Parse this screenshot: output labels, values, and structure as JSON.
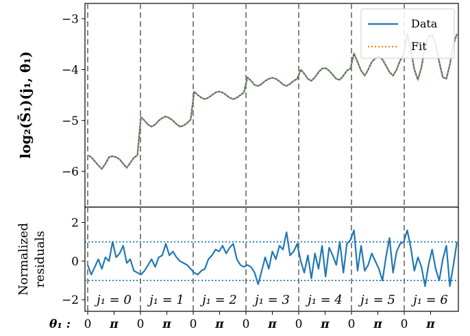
{
  "chart_data": [
    {
      "type": "line",
      "ylabel": "log₂(S̄₁)(j₁, θ₁)",
      "ylim": [
        -6.7,
        -2.7
      ],
      "yticks": [
        -3,
        -4,
        -5,
        -6
      ],
      "ytick_labels": [
        "−3",
        "−4",
        "−5",
        "−6"
      ],
      "legend_position": "top-right",
      "segment_boundaries": [
        0,
        1,
        2,
        3,
        4,
        5,
        6
      ],
      "x_max": 7,
      "series": [
        {
          "name": "Data",
          "color": "#1f77b4",
          "style": "solid",
          "values": [
            -5.68,
            -5.72,
            -5.8,
            -5.88,
            -5.95,
            -5.85,
            -5.72,
            -5.7,
            -5.72,
            -5.76,
            -5.85,
            -5.93,
            -5.83,
            -5.73,
            -5.68,
            -4.93,
            -5.0,
            -5.08,
            -5.12,
            -5.08,
            -5.0,
            -4.95,
            -4.92,
            -4.95,
            -5.0,
            -5.07,
            -5.12,
            -5.1,
            -5.05,
            -4.98,
            -4.43,
            -4.5,
            -4.55,
            -4.58,
            -4.55,
            -4.5,
            -4.45,
            -4.43,
            -4.45,
            -4.5,
            -4.55,
            -4.58,
            -4.55,
            -4.5,
            -4.45,
            -4.15,
            -4.22,
            -4.3,
            -4.32,
            -4.28,
            -4.22,
            -4.18,
            -4.16,
            -4.18,
            -4.23,
            -4.29,
            -4.32,
            -4.28,
            -4.22,
            -4.18,
            -4.0,
            -4.08,
            -4.18,
            -4.22,
            -4.15,
            -4.05,
            -3.98,
            -3.97,
            -4.02,
            -4.1,
            -4.18,
            -4.2,
            -4.12,
            -4.02,
            -3.98,
            -3.68,
            -3.85,
            -4.02,
            -4.12,
            -4.0,
            -3.85,
            -3.78,
            -3.75,
            -3.8,
            -3.92,
            -4.05,
            -4.12,
            -4.0,
            -3.82,
            -3.7,
            -3.3,
            -3.6,
            -4.0,
            -4.2,
            -3.95,
            -3.55,
            -3.35,
            -3.32,
            -3.5,
            -3.85,
            -4.15,
            -4.18,
            -3.9,
            -3.5,
            -3.3
          ]
        },
        {
          "name": "Fit",
          "color": "#ff7f0e",
          "style": "dotted",
          "values": [
            -5.68,
            -5.72,
            -5.8,
            -5.88,
            -5.95,
            -5.85,
            -5.72,
            -5.7,
            -5.72,
            -5.76,
            -5.85,
            -5.93,
            -5.83,
            -5.73,
            -5.68,
            -4.93,
            -5.0,
            -5.08,
            -5.12,
            -5.08,
            -5.0,
            -4.95,
            -4.92,
            -4.95,
            -5.0,
            -5.07,
            -5.12,
            -5.1,
            -5.05,
            -4.98,
            -4.43,
            -4.5,
            -4.55,
            -4.58,
            -4.55,
            -4.5,
            -4.45,
            -4.43,
            -4.45,
            -4.5,
            -4.55,
            -4.58,
            -4.55,
            -4.5,
            -4.45,
            -4.15,
            -4.22,
            -4.3,
            -4.32,
            -4.28,
            -4.22,
            -4.18,
            -4.16,
            -4.18,
            -4.23,
            -4.29,
            -4.32,
            -4.28,
            -4.22,
            -4.18,
            -4.0,
            -4.08,
            -4.18,
            -4.22,
            -4.15,
            -4.05,
            -3.98,
            -3.97,
            -4.02,
            -4.1,
            -4.18,
            -4.2,
            -4.12,
            -4.02,
            -3.98,
            -3.68,
            -3.85,
            -4.02,
            -4.12,
            -4.0,
            -3.85,
            -3.78,
            -3.75,
            -3.8,
            -3.92,
            -4.05,
            -4.12,
            -4.0,
            -3.82,
            -3.7,
            -3.3,
            -3.6,
            -4.0,
            -4.2,
            -3.95,
            -3.55,
            -3.35,
            -3.32,
            -3.5,
            -3.85,
            -4.15,
            -4.18,
            -3.9,
            -3.5,
            -3.3
          ]
        }
      ]
    },
    {
      "type": "line",
      "ylabel_lines": [
        "Normalized",
        "residuals"
      ],
      "ylim": [
        -2.6,
        2.8
      ],
      "yticks": [
        2,
        0,
        -2
      ],
      "ytick_labels": [
        "2",
        "0",
        "−2"
      ],
      "reference_lines": [
        1,
        -1
      ],
      "segment_boundaries": [
        0,
        1,
        2,
        3,
        4,
        5,
        6
      ],
      "x_max": 7,
      "series": [
        {
          "color": "#1f77b4",
          "values": [
            -0.2,
            -0.7,
            -0.3,
            0.1,
            -0.4,
            0.2,
            0.0,
            1.0,
            0.2,
            0.4,
            0.8,
            -0.1,
            0.1,
            -0.5,
            -0.6,
            -0.7,
            -0.5,
            -0.2,
            0.1,
            -0.3,
            0.2,
            0.3,
            0.9,
            0.3,
            0.5,
            0.2,
            0.0,
            -0.1,
            -0.2,
            -0.4,
            -0.6,
            -0.7,
            -0.5,
            -0.4,
            0.1,
            0.3,
            0.6,
            0.5,
            0.8,
            0.4,
            0.7,
            0.9,
            0.1,
            -0.2,
            -0.3,
            -0.2,
            -0.3,
            -0.6,
            -1.2,
            -0.5,
            0.2,
            -0.4,
            0.5,
            0.1,
            0.8,
            0.6,
            1.5,
            0.3,
            0.5,
            0.9,
            0.0,
            -0.6,
            0.3,
            -0.9,
            0.4,
            -0.4,
            0.8,
            -0.8,
            0.7,
            0.3,
            -0.2,
            1.0,
            -0.6,
            0.9,
            1.1,
            1.6,
            -0.5,
            0.8,
            -0.5,
            -0.2,
            0.4,
            0.0,
            -0.4,
            -1.0,
            0.2,
            1.2,
            -0.6,
            0.5,
            0.9,
            1.0,
            1.6,
            0.7,
            -0.5,
            0.2,
            -0.3,
            -1.3,
            -0.2,
            0.6,
            -0.4,
            -1.0,
            0.1,
            0.8,
            -1.3,
            -0.2,
            1.0
          ]
        }
      ]
    }
  ],
  "segment_labels": [
    "j₁ = 0",
    "j₁ = 1",
    "j₁ = 2",
    "j₁ = 3",
    "j₁ = 4",
    "j₁ = 5",
    "j₁ = 6"
  ],
  "x_axis_prefix": "θ₁ :",
  "x_ticks": [
    "0",
    "π",
    "0",
    "π",
    "0",
    "π",
    "0",
    "π",
    "0",
    "π",
    "0",
    "π",
    "0",
    "π"
  ],
  "legend": {
    "data_label": "Data",
    "fit_label": "Fit"
  }
}
